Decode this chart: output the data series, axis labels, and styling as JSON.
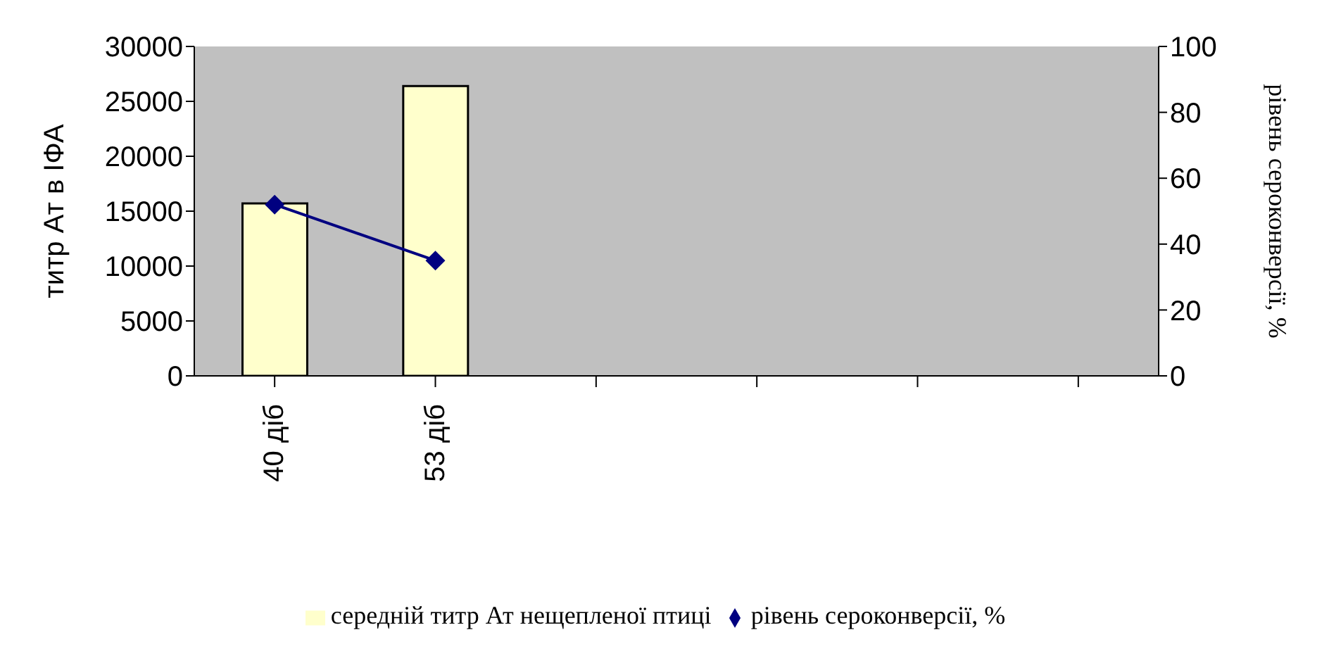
{
  "chart_data": {
    "type": "bar",
    "categories": [
      "40 діб",
      "53 діб",
      null,
      null,
      null,
      null
    ],
    "series": [
      {
        "name": "середній титр Ат нещепленої птиці",
        "color": "#ffffcc",
        "values": [
          15700,
          26400,
          null,
          null,
          null,
          null
        ]
      },
      {
        "name": "рівень сероконверсії, %",
        "type": "line",
        "axis": "y2",
        "color": "#000080",
        "marker": "diamond",
        "values": [
          52,
          35,
          null,
          null,
          null,
          null
        ]
      }
    ],
    "ylabel": "титр Ат в ІФА",
    "y2label": "рівень сероконверсії, %",
    "ylim": [
      0,
      30000
    ],
    "yticks": [
      0,
      5000,
      10000,
      15000,
      20000,
      25000,
      30000
    ],
    "y2lim": [
      0,
      100
    ],
    "y2ticks": [
      0,
      20,
      40,
      60,
      80,
      100
    ],
    "grid": false,
    "legend": "bottom"
  }
}
